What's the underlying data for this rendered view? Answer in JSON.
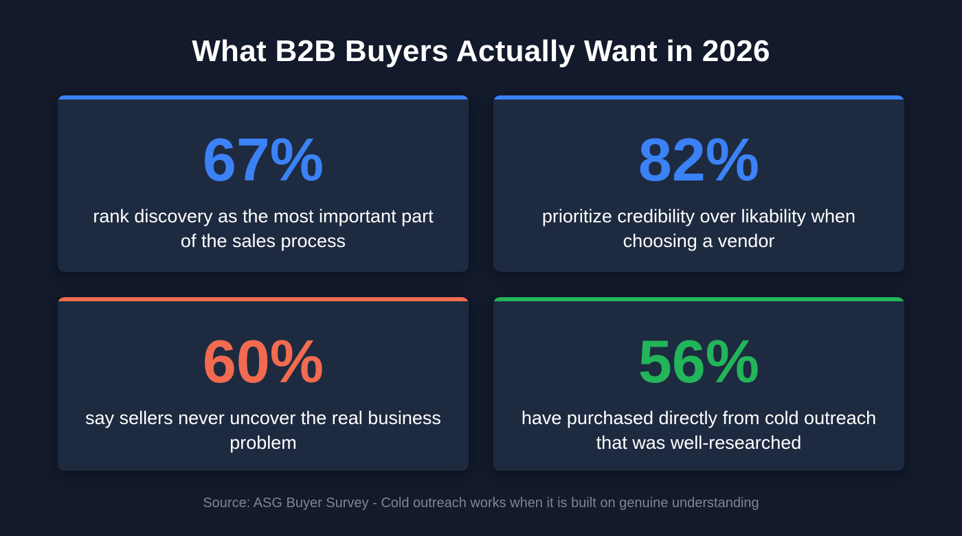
{
  "title": "What B2B Buyers Actually Want in 2026",
  "stats": [
    {
      "value": "67%",
      "description": "rank discovery as the most important part of the sales process",
      "color": "#3b82f6"
    },
    {
      "value": "82%",
      "description": "prioritize credibility over likability when choosing a vendor",
      "color": "#3b82f6"
    },
    {
      "value": "60%",
      "description": "say sellers never uncover the real business problem",
      "color": "#f26b50"
    },
    {
      "value": "56%",
      "description": "have purchased directly from cold outreach that was well-researched",
      "color": "#22b55a"
    }
  ],
  "source": "Source: ASG Buyer Survey - Cold outreach works when it is built on genuine understanding"
}
